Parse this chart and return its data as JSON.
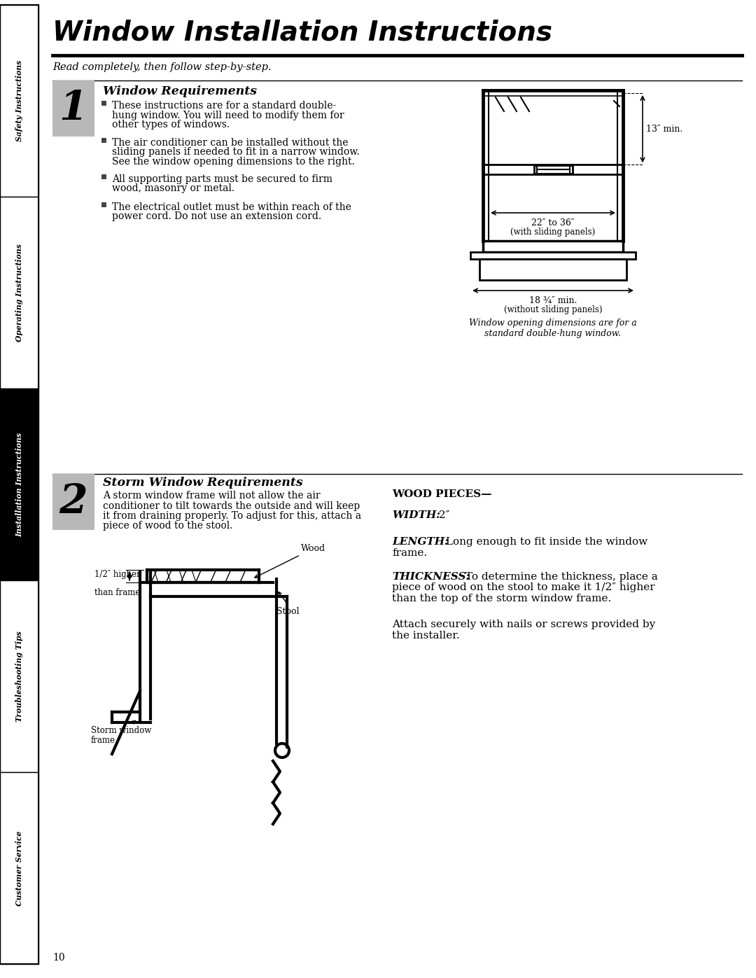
{
  "title": "Window Installation Instructions",
  "subtitle": "Read completely, then follow step-by-step.",
  "page_number": "10",
  "bg_color": "#ffffff",
  "sidebar_labels": [
    "Safety Instructions",
    "Operating Instructions",
    "Installation Instructions",
    "Troubleshooting Tips",
    "Customer Service"
  ],
  "sidebar_active": 2,
  "section1_number": "1",
  "section1_title": "Window Requirements",
  "section1_bullets": [
    "These instructions are for a standard double-\nhung window. You will need to modify them for\nother types of windows.",
    "The air conditioner can be installed without the\nsliding panels if needed to fit in a narrow window.\nSee the window opening dimensions to the right.",
    "All supporting parts must be secured to firm\nwood, masonry or metal.",
    "The electrical outlet must be within reach of the\npower cord. Do not use an extension cord."
  ],
  "diagram1_caption": "Window opening dimensions are for a\nstandard double-hung window.",
  "section2_number": "2",
  "section2_title": "Storm Window Requirements",
  "section2_body": "A storm window frame will not allow the air\nconditioner to tilt towards the outside and will keep\nit from draining properly. To adjust for this, attach a\npiece of wood to the stool.",
  "wood_pieces_title": "WOOD PIECES—",
  "wood_width_label": "WIDTH:",
  "wood_width_val": " 2″",
  "wood_length_label": "LENGTH:",
  "wood_length_body": " Long enough to fit inside the window\nframe.",
  "wood_thickness_label": "THICKNESS:",
  "wood_thickness_body": " To determine the thickness, place a\npiece of wood on the stool to make it 1/2″ higher\nthan the top of the storm window frame.",
  "wood_attach": "Attach securely with nails or screws provided by\nthe installer.",
  "diag2_label_wood": "Wood",
  "diag2_label_stool": "Stool",
  "diag2_label_frame1": "Storm window",
  "diag2_label_frame2": "frame",
  "diag2_label_higher1": "1/2″ higher",
  "diag2_label_higher2": "than frame"
}
